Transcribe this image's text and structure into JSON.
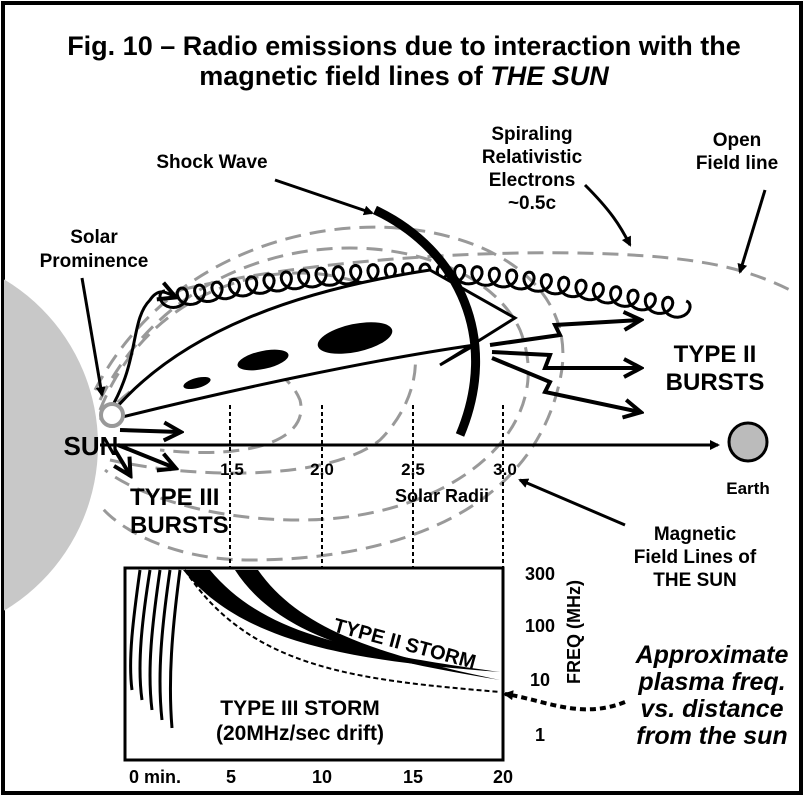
{
  "title": {
    "line1": "Fig. 10 – Radio emissions due to interaction with the",
    "line2": "magnetic field lines of",
    "line2_emphasis": "THE SUN"
  },
  "labels": {
    "shock_wave": "Shock Wave",
    "electrons": [
      "Spiraling",
      "Relativistic",
      "Electrons",
      "~0.5c"
    ],
    "open_field": [
      "Open",
      "Field line"
    ],
    "prominence": [
      "Solar",
      "Prominence"
    ],
    "sun": "SUN",
    "type2_bursts": [
      "TYPE II",
      "BURSTS"
    ],
    "type3_bursts": [
      "TYPE III",
      "BURSTS"
    ],
    "radii_ticks": [
      "1.5",
      "2.0",
      "2.5",
      "3.0"
    ],
    "radii_axis": "Solar Radii",
    "earth": "Earth",
    "field_lines": [
      "Magnetic",
      "Field Lines of",
      "THE SUN"
    ]
  },
  "inset": {
    "freq_ticks": [
      "300",
      "100",
      "10",
      "1"
    ],
    "freq_axis": "FREQ (MHz)",
    "type2_storm": "TYPE II STORM",
    "type3_storm": [
      "TYPE III STORM",
      "(20MHz/sec drift)"
    ],
    "time_ticks": [
      "0 min.",
      "5",
      "10",
      "15",
      "20"
    ],
    "plasma_note": [
      "Approximate",
      "plasma freq.",
      "vs. distance",
      "from the sun"
    ]
  }
}
